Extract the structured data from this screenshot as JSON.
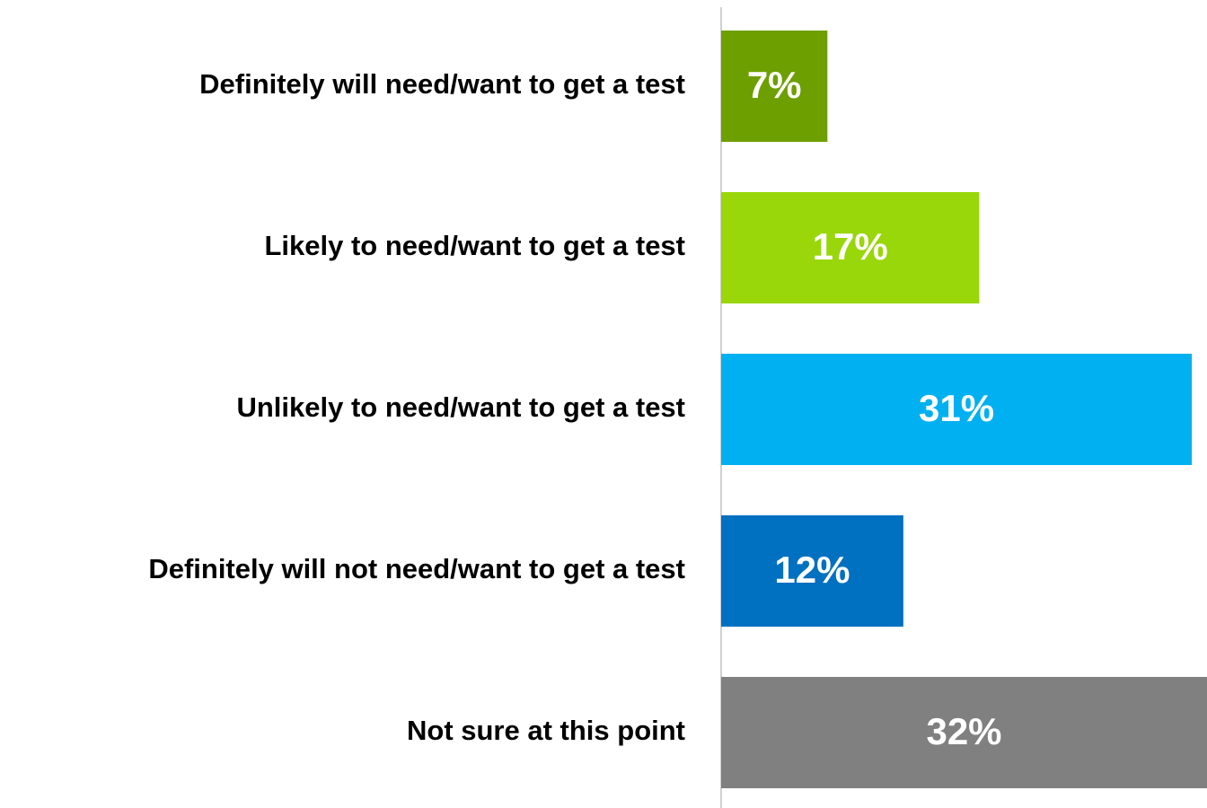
{
  "chart_data": {
    "type": "bar",
    "orientation": "horizontal",
    "categories": [
      "Definitely will need/want to get a test",
      "Likely to need/want to get a test",
      "Unlikely to need/want to get a test",
      "Definitely will not need/want to get a test",
      "Not sure at this point"
    ],
    "values": [
      7,
      17,
      31,
      12,
      32
    ],
    "value_labels": [
      "7%",
      "17%",
      "31%",
      "12%",
      "32%"
    ],
    "colors": [
      "#6e9f00",
      "#99d60a",
      "#00b0f0",
      "#0070c0",
      "#808080"
    ],
    "xlim": [
      0,
      32
    ]
  }
}
